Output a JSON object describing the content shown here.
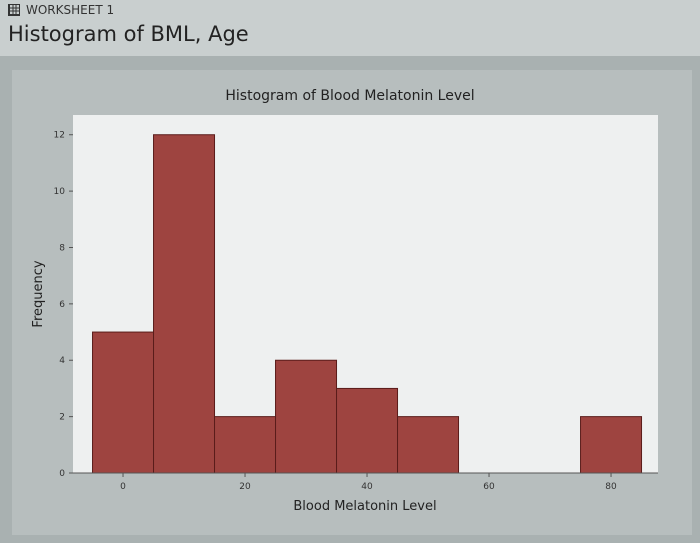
{
  "header": {
    "worksheet_label": "WORKSHEET 1",
    "title": "Histogram of BML, Age",
    "icon": "grid-icon"
  },
  "chart_data": {
    "type": "bar",
    "title": "Histogram of Blood Melatonin Level",
    "xlabel": "Blood Melatonin Level",
    "ylabel": "Frequency",
    "bin_midpoints": [
      0,
      10,
      20,
      30,
      40,
      50,
      60,
      70,
      80
    ],
    "bin_width": 10,
    "values": [
      5,
      12,
      2,
      4,
      3,
      2,
      0,
      0,
      2
    ],
    "xticks": [
      0,
      20,
      40,
      60,
      80
    ],
    "yticks": [
      0,
      2,
      4,
      6,
      8,
      10,
      12
    ],
    "xlim": [
      -8.2,
      87.7
    ],
    "ylim": [
      0,
      12.7
    ],
    "bar_color": "#9e4440",
    "grid": false
  }
}
